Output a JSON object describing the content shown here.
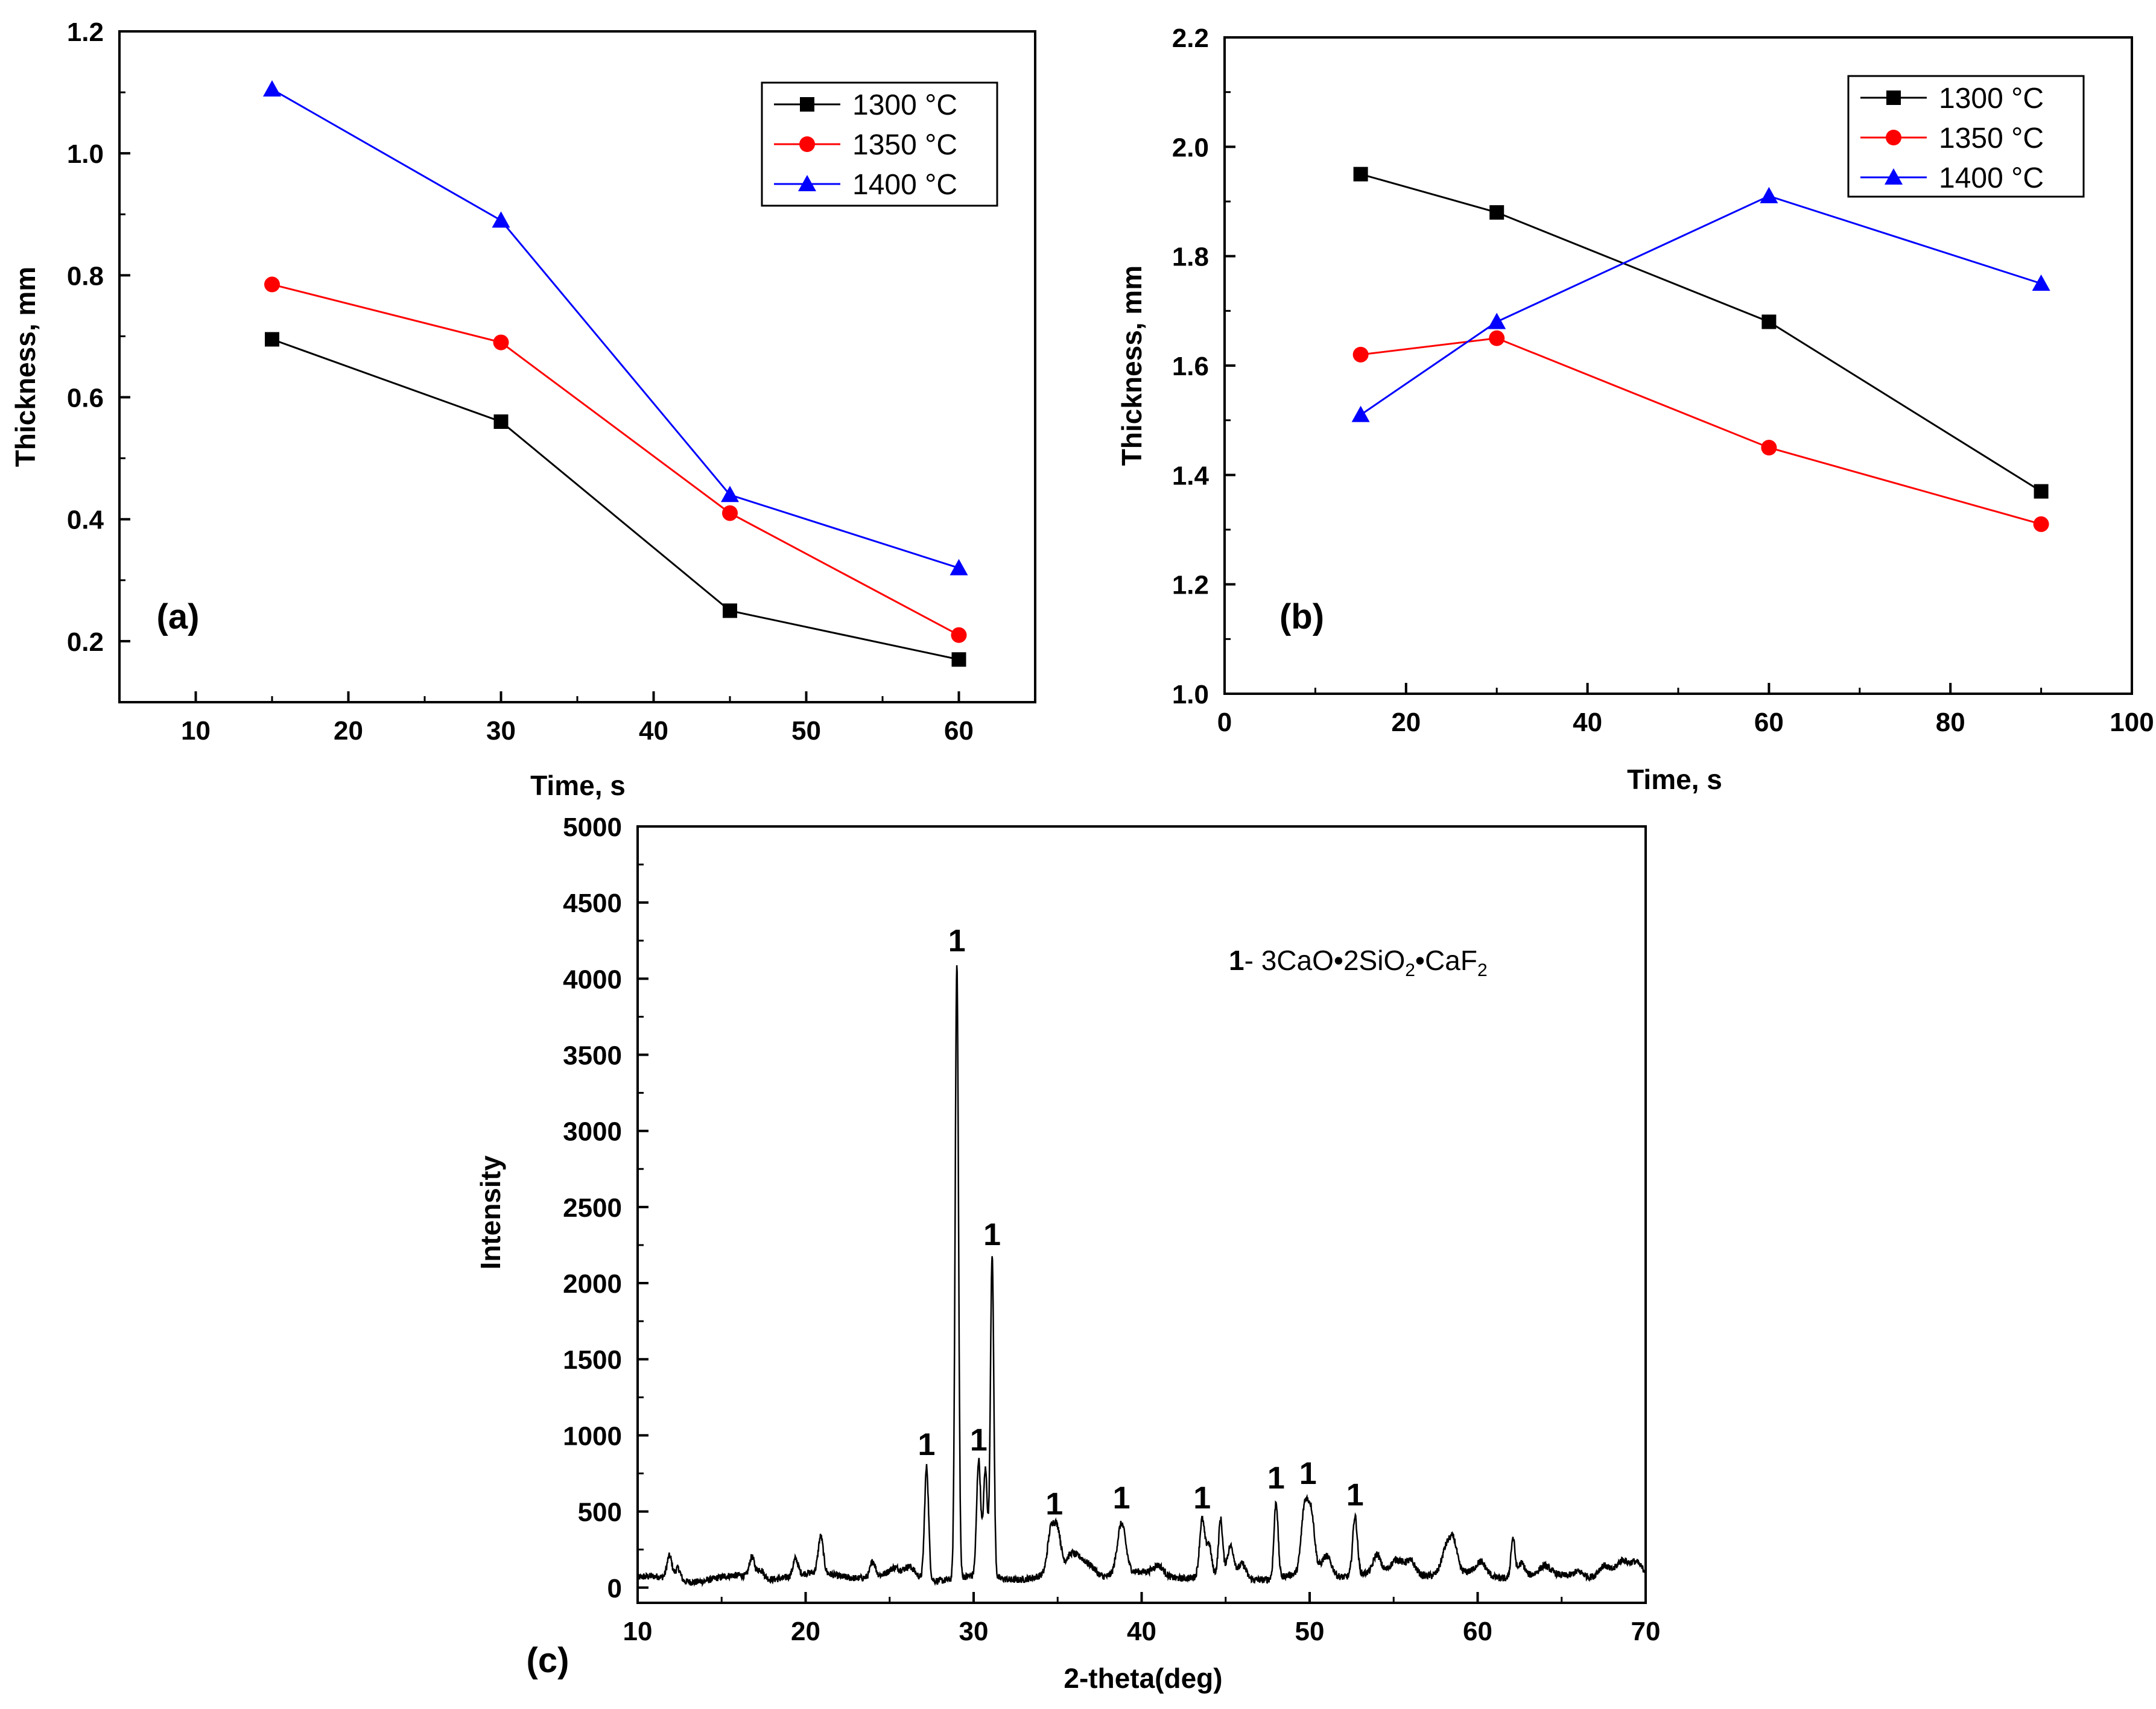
{
  "chart_data": [
    {
      "id": "a",
      "type": "line",
      "panel_label": "(a)",
      "xlabel": "Time, s",
      "ylabel": "Thickness, mm",
      "xlim": [
        5,
        65
      ],
      "ylim": [
        0.1,
        1.2
      ],
      "xticks": [
        10,
        20,
        30,
        40,
        50,
        60
      ],
      "yticks": [
        0.2,
        0.4,
        0.6,
        0.8,
        1.0,
        1.2
      ],
      "ytick_decimals": 1,
      "legend_position": "top-right",
      "series": [
        {
          "name": "1300 °C",
          "color": "#000000",
          "marker": "square",
          "x": [
            15,
            30,
            45,
            60
          ],
          "y": [
            0.695,
            0.56,
            0.25,
            0.17
          ]
        },
        {
          "name": "1350 °C",
          "color": "#ff0000",
          "marker": "circle",
          "x": [
            15,
            30,
            45,
            60
          ],
          "y": [
            0.785,
            0.69,
            0.41,
            0.21
          ]
        },
        {
          "name": "1400 °C",
          "color": "#0000ff",
          "marker": "triangle",
          "x": [
            15,
            30,
            45,
            60
          ],
          "y": [
            1.105,
            0.89,
            0.44,
            0.32
          ]
        }
      ]
    },
    {
      "id": "b",
      "type": "line",
      "panel_label": "(b)",
      "xlabel": "Time, s",
      "ylabel": "Thickness, mm",
      "xlim": [
        0,
        100
      ],
      "ylim": [
        1.0,
        2.2
      ],
      "xticks": [
        0,
        20,
        40,
        60,
        80,
        100
      ],
      "yticks": [
        1.0,
        1.2,
        1.4,
        1.6,
        1.8,
        2.0,
        2.2
      ],
      "ytick_decimals": 1,
      "legend_position": "top-right",
      "series": [
        {
          "name": "1300 °C",
          "color": "#000000",
          "marker": "square",
          "x": [
            15,
            30,
            60,
            90
          ],
          "y": [
            1.95,
            1.88,
            1.68,
            1.37
          ]
        },
        {
          "name": "1350 °C",
          "color": "#ff0000",
          "marker": "circle",
          "x": [
            15,
            30,
            60,
            90
          ],
          "y": [
            1.62,
            1.65,
            1.45,
            1.31
          ]
        },
        {
          "name": "1400 °C",
          "color": "#0000ff",
          "marker": "triangle",
          "x": [
            15,
            30,
            60,
            90
          ],
          "y": [
            1.51,
            1.68,
            1.91,
            1.75
          ]
        }
      ]
    },
    {
      "id": "c",
      "type": "line",
      "panel_label": "(c)",
      "xlabel": "2-theta(deg)",
      "ylabel": "Intensity",
      "xlim": [
        10,
        70
      ],
      "ylim": [
        -100,
        5000
      ],
      "xticks": [
        10,
        20,
        30,
        40,
        50,
        60,
        70
      ],
      "yticks": [
        0,
        500,
        1000,
        1500,
        2000,
        2500,
        3000,
        3500,
        4000,
        4500,
        5000
      ],
      "ytick_decimals": 0,
      "annotation": {
        "number": "1",
        "text": "- 3CaO•2SiO",
        "sub1": "2",
        "mid": "•CaF",
        "sub2": "2"
      },
      "peak_labels": [
        {
          "x": 27.2,
          "y": 870,
          "text": "1"
        },
        {
          "x": 29.0,
          "y": 4180,
          "text": "1"
        },
        {
          "x": 30.3,
          "y": 900,
          "text": "1"
        },
        {
          "x": 31.1,
          "y": 2250,
          "text": "1"
        },
        {
          "x": 34.8,
          "y": 480,
          "text": "1"
        },
        {
          "x": 38.8,
          "y": 520,
          "text": "1"
        },
        {
          "x": 43.6,
          "y": 520,
          "text": "1"
        },
        {
          "x": 48.0,
          "y": 650,
          "text": "1"
        },
        {
          "x": 49.9,
          "y": 680,
          "text": "1"
        },
        {
          "x": 52.7,
          "y": 540,
          "text": "1"
        }
      ],
      "baseline": {
        "start": 65,
        "end": 90
      },
      "peaks": [
        [
          11.9,
          150,
          0.15
        ],
        [
          12.4,
          80,
          0.15
        ],
        [
          16.8,
          130,
          0.15
        ],
        [
          17.3,
          60,
          0.2
        ],
        [
          19.4,
          110,
          0.15
        ],
        [
          20.9,
          240,
          0.15
        ],
        [
          24.0,
          100,
          0.15
        ],
        [
          25.3,
          40,
          0.3
        ],
        [
          26.2,
          60,
          0.3
        ],
        [
          27.2,
          740,
          0.12
        ],
        [
          29.0,
          4040,
          0.1
        ],
        [
          30.3,
          760,
          0.12
        ],
        [
          30.7,
          700,
          0.12
        ],
        [
          31.1,
          2120,
          0.1
        ],
        [
          34.6,
          280,
          0.2
        ],
        [
          35.0,
          270,
          0.2
        ],
        [
          35.8,
          120,
          0.3
        ],
        [
          36.4,
          90,
          0.3
        ],
        [
          37.0,
          60,
          0.3
        ],
        [
          38.8,
          330,
          0.25
        ],
        [
          41.0,
          60,
          0.3
        ],
        [
          43.6,
          370,
          0.15
        ],
        [
          44.0,
          200,
          0.15
        ],
        [
          44.7,
          360,
          0.12
        ],
        [
          45.3,
          190,
          0.2
        ],
        [
          46.0,
          90,
          0.2
        ],
        [
          48.0,
          500,
          0.12
        ],
        [
          49.7,
          420,
          0.2
        ],
        [
          50.1,
          380,
          0.2
        ],
        [
          51.0,
          130,
          0.3
        ],
        [
          52.7,
          390,
          0.14
        ],
        [
          54.0,
          110,
          0.2
        ],
        [
          55.2,
          80,
          0.3
        ],
        [
          56.0,
          90,
          0.3
        ],
        [
          58.2,
          190,
          0.3
        ],
        [
          58.6,
          140,
          0.2
        ],
        [
          60.2,
          80,
          0.3
        ],
        [
          62.1,
          260,
          0.12
        ],
        [
          62.6,
          90,
          0.2
        ],
        [
          64.0,
          50,
          0.3
        ],
        [
          66.0,
          40,
          0.3
        ],
        [
          67.5,
          60,
          0.3
        ],
        [
          68.6,
          70,
          0.3
        ],
        [
          69.4,
          60,
          0.3
        ]
      ]
    }
  ]
}
